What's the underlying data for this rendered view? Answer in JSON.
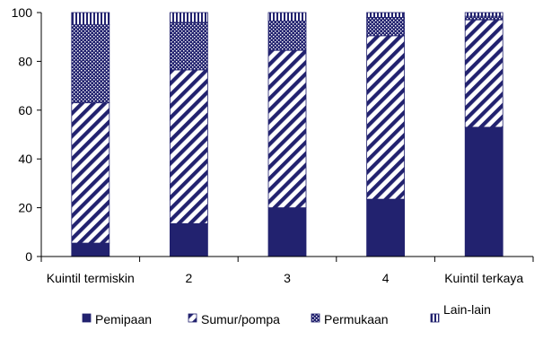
{
  "chart_data": {
    "type": "bar",
    "stacked": true,
    "categories": [
      "Kuintil termiskin",
      "2",
      "3",
      "4",
      "Kuintil terkaya"
    ],
    "series": [
      {
        "name": "Pemipaan",
        "pattern": "solid",
        "values": [
          5.5,
          13.5,
          20,
          23.5,
          53
        ]
      },
      {
        "name": "Sumur/pompa",
        "pattern": "diagonal",
        "values": [
          57.5,
          63,
          64.5,
          67,
          44
        ]
      },
      {
        "name": "Permukaan",
        "pattern": "dots",
        "values": [
          32,
          19.5,
          12,
          7.5,
          1.5
        ]
      },
      {
        "name": "Lain-lain",
        "pattern": "vertical",
        "values": [
          5,
          4,
          3.5,
          2,
          1.5
        ]
      }
    ],
    "y_ticks": [
      "0",
      "20",
      "40",
      "60",
      "80",
      "100"
    ],
    "ylim": [
      0,
      100
    ],
    "grid": false,
    "legend_position": "bottom",
    "colors": {
      "series": "#22226f",
      "fill": "#ffffff",
      "axis": "#000000"
    }
  }
}
